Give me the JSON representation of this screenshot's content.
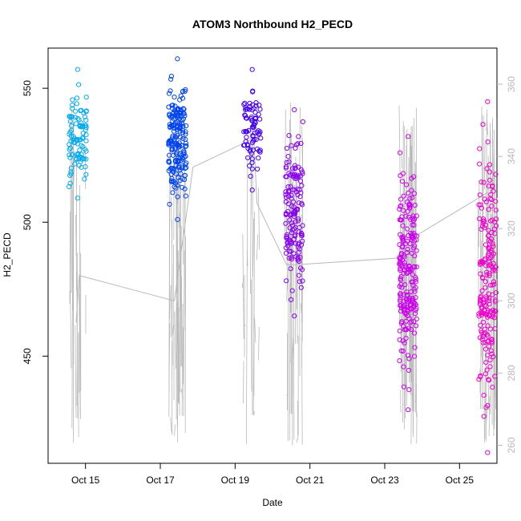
{
  "chart_data": {
    "type": "scatter",
    "title": "ATOM3 Northbound H2_PECD",
    "xlabel": "Date",
    "ylabel": "H2_PECD",
    "x_axis": {
      "unit": "date",
      "range": [
        "2023-10-14T00:00",
        "2023-10-26T00:00"
      ],
      "ticks": [
        {
          "label": "Oct 15",
          "value": "2023-10-15"
        },
        {
          "label": "Oct 17",
          "value": "2023-10-17"
        },
        {
          "label": "Oct 19",
          "value": "2023-10-19"
        },
        {
          "label": "Oct 21",
          "value": "2023-10-21"
        },
        {
          "label": "Oct 23",
          "value": "2023-10-23"
        },
        {
          "label": "Oct 25",
          "value": "2023-10-25"
        }
      ]
    },
    "y_axis_left": {
      "range": [
        410,
        565
      ],
      "ticks": [
        "450",
        "500",
        "550"
      ]
    },
    "y_axis_right": {
      "range": [
        255,
        370
      ],
      "ticks": [
        "260",
        "280",
        "300",
        "320",
        "340",
        "360"
      ],
      "color": "#b8b8b8"
    },
    "grid": false,
    "marker": "open-circle",
    "point_colors": [
      "#00aaee",
      "#0044ee",
      "#4400ee",
      "#8800ee",
      "#cc00ee",
      "#ee00cc"
    ],
    "line_color": "#b8b8b8",
    "series": [
      {
        "points": [
          {
            "x": "2023-10-14T19:00",
            "y_min": 509,
            "y_max": 557,
            "n": 95,
            "color": "#00aaee"
          },
          {
            "x": "2023-10-17T11:00",
            "y_min": 501,
            "y_max": 561,
            "n": 190,
            "color": "#0044ee"
          },
          {
            "x": "2023-10-19T11:00",
            "y_min": 512,
            "y_max": 557,
            "n": 80,
            "color": "#4400ee"
          },
          {
            "x": "2023-10-20T14:00",
            "y_min": 465,
            "y_max": 542,
            "n": 150,
            "color": "#8800ee"
          },
          {
            "x": "2023-10-23T15:00",
            "y_min": 430,
            "y_max": 532,
            "n": 210,
            "color": "#cc00ee"
          },
          {
            "x": "2023-10-25T18:00",
            "y_min": 414,
            "y_max": 545,
            "n": 190,
            "color": "#ee00cc"
          }
        ]
      },
      {
        "line_trace": [
          {
            "x": "2023-10-14T18:00",
            "y": 294
          },
          {
            "x": "2023-10-14T20:00",
            "y": 307
          },
          {
            "x": "2023-10-17T09:00",
            "y": 300
          },
          {
            "x": "2023-10-17T21:00",
            "y": 337
          },
          {
            "x": "2023-10-19T12:00",
            "y": 345
          },
          {
            "x": "2023-10-19T14:00",
            "y": 327
          },
          {
            "x": "2023-10-20T09:00",
            "y": 310
          },
          {
            "x": "2023-10-20T15:00",
            "y": 310
          },
          {
            "x": "2023-10-23T14:00",
            "y": 312
          },
          {
            "x": "2023-10-23T20:00",
            "y": 318
          },
          {
            "x": "2023-10-25T18:00",
            "y": 330
          }
        ]
      }
    ]
  }
}
